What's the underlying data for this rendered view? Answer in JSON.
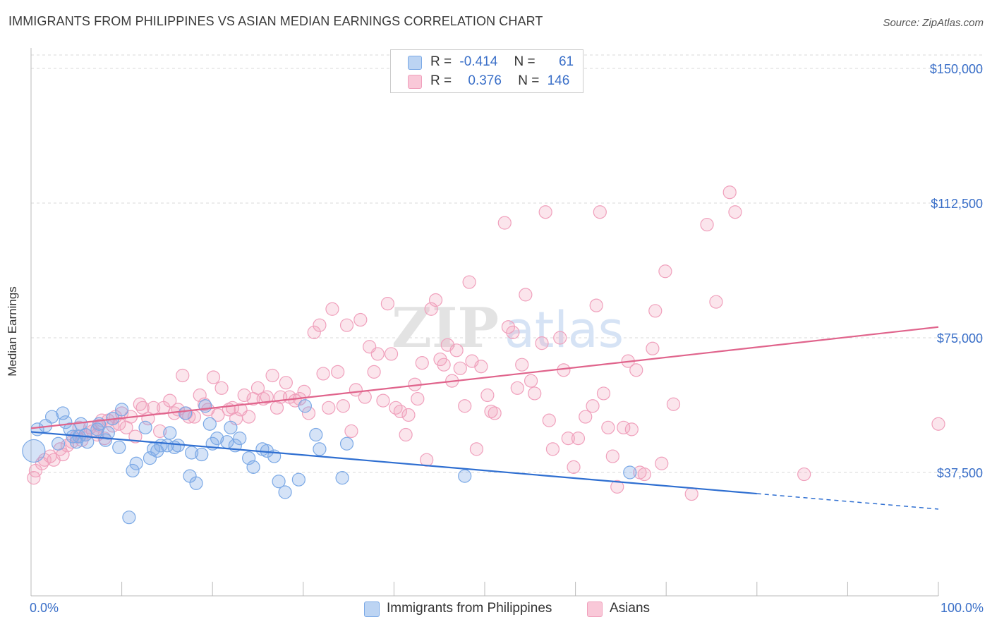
{
  "header": {
    "title": "IMMIGRANTS FROM PHILIPPINES VS ASIAN MEDIAN EARNINGS CORRELATION CHART",
    "source": "Source: ZipAtlas.com"
  },
  "colors": {
    "blue": "#7ba9e6",
    "blue_line": "#2f6fd1",
    "pink": "#f0a0bc",
    "pink_line": "#e0648c",
    "axis_text": "#3a6fc8",
    "grid": "#d9d9d9"
  },
  "legend": {
    "r_label": "R =",
    "n_label": "N =",
    "rows": [
      {
        "r": "-0.414",
        "n": "61"
      },
      {
        "r": "0.376",
        "n": "146"
      }
    ]
  },
  "chart_data": {
    "type": "scatter",
    "title": "IMMIGRANTS FROM PHILIPPINES VS ASIAN MEDIAN EARNINGS CORRELATION CHART",
    "ylabel": "Median Earnings",
    "xlabel": "",
    "x_tick_labels": [
      "0.0%",
      "100.0%"
    ],
    "xlim": [
      0,
      100
    ],
    "ylim": [
      0,
      155000
    ],
    "y_ticks": [
      37500,
      75000,
      112500,
      150000
    ],
    "y_tick_labels": [
      "$37,500",
      "$75,000",
      "$112,500",
      "$150,000"
    ],
    "grid": "horizontal dashed",
    "legend_position": "top-center",
    "watermark": "ZIPatlas",
    "series": [
      {
        "name": "Immigrants from Philippines",
        "r": -0.414,
        "n": 61,
        "trend": {
          "x0": 0,
          "y0": 48800,
          "x1": 80,
          "y1": 31600,
          "dashed_to_x": 100,
          "dashed_to_y": 27300
        },
        "points": [
          [
            0.3,
            43500
          ],
          [
            0.7,
            49500
          ],
          [
            1.6,
            50500
          ],
          [
            2.3,
            53000
          ],
          [
            3.0,
            45500
          ],
          [
            3.5,
            54000
          ],
          [
            3.8,
            51500
          ],
          [
            4.3,
            49500
          ],
          [
            4.6,
            47500
          ],
          [
            5.0,
            46000
          ],
          [
            5.3,
            47500
          ],
          [
            5.5,
            51000
          ],
          [
            6.0,
            48000
          ],
          [
            6.2,
            46000
          ],
          [
            7.3,
            49500
          ],
          [
            7.5,
            51000
          ],
          [
            8.2,
            46500
          ],
          [
            8.5,
            48500
          ],
          [
            9.0,
            52500
          ],
          [
            9.7,
            44500
          ],
          [
            10.0,
            55000
          ],
          [
            10.8,
            25000
          ],
          [
            11.2,
            38000
          ],
          [
            11.6,
            40000
          ],
          [
            12.6,
            50000
          ],
          [
            13.1,
            41500
          ],
          [
            13.5,
            44000
          ],
          [
            13.9,
            43500
          ],
          [
            14.3,
            45000
          ],
          [
            15.0,
            45000
          ],
          [
            15.3,
            48500
          ],
          [
            15.8,
            44500
          ],
          [
            16.2,
            45000
          ],
          [
            17.0,
            54000
          ],
          [
            17.5,
            36500
          ],
          [
            17.7,
            43000
          ],
          [
            18.2,
            34500
          ],
          [
            18.8,
            42500
          ],
          [
            19.2,
            56000
          ],
          [
            19.7,
            51000
          ],
          [
            20.0,
            45500
          ],
          [
            20.5,
            47000
          ],
          [
            21.6,
            46000
          ],
          [
            22.0,
            50000
          ],
          [
            22.5,
            45000
          ],
          [
            23.0,
            47000
          ],
          [
            24.0,
            41500
          ],
          [
            24.5,
            39000
          ],
          [
            25.5,
            44000
          ],
          [
            26.0,
            43500
          ],
          [
            26.8,
            42000
          ],
          [
            27.3,
            35000
          ],
          [
            28.0,
            32000
          ],
          [
            29.5,
            35500
          ],
          [
            30.2,
            56000
          ],
          [
            31.4,
            48000
          ],
          [
            31.8,
            44000
          ],
          [
            34.3,
            36000
          ],
          [
            34.8,
            45500
          ],
          [
            47.8,
            36500
          ],
          [
            66.0,
            37500
          ]
        ]
      },
      {
        "name": "Asians",
        "r": 0.376,
        "n": 146,
        "trend": {
          "x0": 0,
          "y0": 49800,
          "x1": 100,
          "y1": 78000
        },
        "points": [
          [
            0.3,
            36000
          ],
          [
            0.5,
            38000
          ],
          [
            1.2,
            40000
          ],
          [
            1.5,
            41000
          ],
          [
            2.1,
            42000
          ],
          [
            2.5,
            41000
          ],
          [
            3.2,
            44000
          ],
          [
            3.5,
            42500
          ],
          [
            4.0,
            45000
          ],
          [
            4.5,
            46000
          ],
          [
            5.0,
            47500
          ],
          [
            5.3,
            50000
          ],
          [
            5.6,
            46500
          ],
          [
            6.0,
            48000
          ],
          [
            6.5,
            50000
          ],
          [
            6.8,
            49000
          ],
          [
            7.3,
            48000
          ],
          [
            7.5,
            50500
          ],
          [
            7.8,
            52000
          ],
          [
            8.1,
            47000
          ],
          [
            8.5,
            52000
          ],
          [
            9.0,
            50500
          ],
          [
            9.3,
            53000
          ],
          [
            9.7,
            51000
          ],
          [
            10.0,
            54000
          ],
          [
            10.5,
            50000
          ],
          [
            11.0,
            53000
          ],
          [
            11.5,
            47500
          ],
          [
            12.0,
            56500
          ],
          [
            12.3,
            55500
          ],
          [
            12.9,
            52500
          ],
          [
            13.5,
            55500
          ],
          [
            14.2,
            49000
          ],
          [
            14.6,
            55500
          ],
          [
            15.3,
            57500
          ],
          [
            15.8,
            54000
          ],
          [
            16.2,
            55000
          ],
          [
            16.7,
            64500
          ],
          [
            17.1,
            54000
          ],
          [
            17.4,
            53000
          ],
          [
            18.0,
            53000
          ],
          [
            18.6,
            59000
          ],
          [
            19.1,
            56500
          ],
          [
            19.5,
            55000
          ],
          [
            20.1,
            64000
          ],
          [
            20.6,
            53500
          ],
          [
            21.0,
            61000
          ],
          [
            21.8,
            55000
          ],
          [
            22.2,
            55500
          ],
          [
            22.6,
            52500
          ],
          [
            23.1,
            55000
          ],
          [
            23.5,
            59000
          ],
          [
            24.0,
            53000
          ],
          [
            24.5,
            58000
          ],
          [
            25.0,
            61000
          ],
          [
            25.6,
            58000
          ],
          [
            26.0,
            58500
          ],
          [
            26.6,
            64500
          ],
          [
            27.1,
            55500
          ],
          [
            27.5,
            58500
          ],
          [
            28.1,
            62500
          ],
          [
            28.5,
            58500
          ],
          [
            29.1,
            57500
          ],
          [
            29.6,
            58000
          ],
          [
            30.1,
            60000
          ],
          [
            30.6,
            54000
          ],
          [
            31.2,
            76500
          ],
          [
            31.8,
            78500
          ],
          [
            32.2,
            65000
          ],
          [
            32.8,
            55500
          ],
          [
            33.2,
            83000
          ],
          [
            33.8,
            65500
          ],
          [
            34.4,
            56000
          ],
          [
            34.8,
            78500
          ],
          [
            35.3,
            49000
          ],
          [
            35.8,
            60500
          ],
          [
            36.3,
            80000
          ],
          [
            36.8,
            58500
          ],
          [
            37.3,
            72500
          ],
          [
            37.8,
            65500
          ],
          [
            38.2,
            70500
          ],
          [
            38.8,
            57500
          ],
          [
            39.3,
            84500
          ],
          [
            39.7,
            70500
          ],
          [
            40.2,
            55500
          ],
          [
            40.7,
            54500
          ],
          [
            41.3,
            48000
          ],
          [
            41.6,
            53500
          ],
          [
            42.3,
            62000
          ],
          [
            42.6,
            58000
          ],
          [
            43.1,
            68000
          ],
          [
            43.6,
            41000
          ],
          [
            44.1,
            83000
          ],
          [
            44.6,
            85500
          ],
          [
            45.1,
            69000
          ],
          [
            45.5,
            67500
          ],
          [
            45.9,
            73000
          ],
          [
            46.4,
            63000
          ],
          [
            46.9,
            71500
          ],
          [
            47.3,
            66500
          ],
          [
            47.8,
            56000
          ],
          [
            48.3,
            90500
          ],
          [
            48.6,
            68500
          ],
          [
            49.1,
            44000
          ],
          [
            49.6,
            67000
          ],
          [
            50.3,
            59000
          ],
          [
            50.7,
            54500
          ],
          [
            51.1,
            54000
          ],
          [
            52.2,
            107000
          ],
          [
            52.6,
            78000
          ],
          [
            53.1,
            76500
          ],
          [
            53.6,
            61000
          ],
          [
            54.1,
            67500
          ],
          [
            54.5,
            87000
          ],
          [
            55.1,
            63000
          ],
          [
            55.5,
            59500
          ],
          [
            56.3,
            73500
          ],
          [
            56.7,
            110000
          ],
          [
            57.1,
            52000
          ],
          [
            57.5,
            44000
          ],
          [
            58.3,
            75000
          ],
          [
            58.7,
            66000
          ],
          [
            59.2,
            47000
          ],
          [
            59.8,
            39000
          ],
          [
            60.3,
            47000
          ],
          [
            61.1,
            53000
          ],
          [
            61.9,
            56000
          ],
          [
            62.3,
            84000
          ],
          [
            62.7,
            110000
          ],
          [
            63.1,
            59500
          ],
          [
            63.6,
            50000
          ],
          [
            64.1,
            42000
          ],
          [
            64.6,
            33500
          ],
          [
            65.3,
            50000
          ],
          [
            65.8,
            68500
          ],
          [
            66.2,
            49500
          ],
          [
            66.7,
            66000
          ],
          [
            67.1,
            37500
          ],
          [
            67.6,
            37000
          ],
          [
            68.5,
            72000
          ],
          [
            68.8,
            82500
          ],
          [
            69.5,
            40000
          ],
          [
            69.9,
            93500
          ],
          [
            70.8,
            56500
          ],
          [
            72.8,
            31500
          ],
          [
            74.5,
            106500
          ],
          [
            75.5,
            85000
          ],
          [
            77.0,
            115500
          ],
          [
            77.6,
            110000
          ],
          [
            85.2,
            37000
          ],
          [
            100.0,
            51000
          ]
        ]
      }
    ]
  }
}
